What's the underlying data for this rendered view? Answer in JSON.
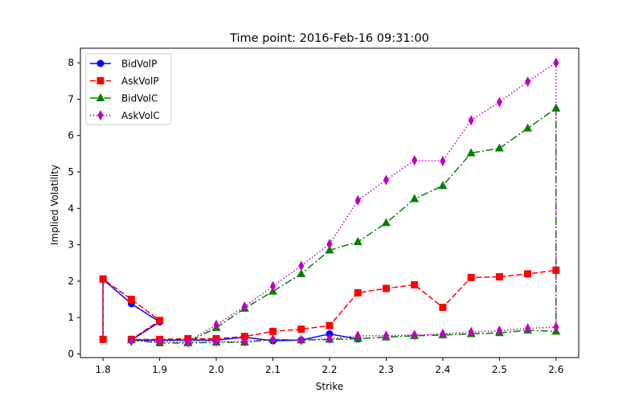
{
  "chart_data": {
    "type": "line",
    "title": "Time point: 2016-Feb-16 09:31:00",
    "xlabel": "Strike",
    "ylabel": "Implied Volatility",
    "xlim": [
      1.76,
      2.64
    ],
    "ylim": [
      -0.1,
      8.4
    ],
    "xticks": [
      1.8,
      1.9,
      2.0,
      2.1,
      2.2,
      2.3,
      2.4,
      2.5,
      2.6
    ],
    "yticks": [
      0,
      1,
      2,
      3,
      4,
      5,
      6,
      7,
      8
    ],
    "xtick_labels": [
      "1.8",
      "1.9",
      "2.0",
      "2.1",
      "2.2",
      "2.3",
      "2.4",
      "2.5",
      "2.6"
    ],
    "ytick_labels": [
      "0",
      "1",
      "2",
      "3",
      "4",
      "5",
      "6",
      "7",
      "8"
    ],
    "grid": false,
    "legend_position": "top-left",
    "series": [
      {
        "name": "BidVolP",
        "color": "#0000ff",
        "marker": "circle",
        "linestyle": "solid",
        "x": [
          1.8,
          1.8,
          1.85,
          1.9,
          1.85,
          1.9,
          1.95,
          2.0,
          2.05,
          2.1,
          2.15,
          2.2,
          2.25
        ],
        "y": [
          0.4,
          2.05,
          1.38,
          0.88,
          0.38,
          0.38,
          0.38,
          0.38,
          0.46,
          0.36,
          0.38,
          0.55,
          0.41
        ]
      },
      {
        "name": "AskVolP",
        "color": "#ff0000",
        "marker": "square",
        "linestyle": "dashed",
        "x": [
          1.8,
          1.8,
          1.85,
          1.9,
          1.85,
          1.9,
          1.95,
          2.0,
          2.05,
          2.1,
          2.15,
          2.2,
          2.25,
          2.3,
          2.35,
          2.4,
          2.45,
          2.5,
          2.55,
          2.6
        ],
        "y": [
          0.4,
          2.06,
          1.5,
          0.92,
          0.4,
          0.4,
          0.42,
          0.42,
          0.48,
          0.62,
          0.68,
          0.78,
          1.68,
          1.8,
          1.9,
          1.28,
          2.1,
          2.12,
          2.2,
          2.3
        ]
      },
      {
        "name": "BidVolC",
        "color": "#008000",
        "marker": "triangle",
        "linestyle": "dashdot",
        "x": [
          1.85,
          1.9,
          1.95,
          2.0,
          2.05,
          2.1,
          2.15,
          2.2,
          2.25,
          2.3,
          2.35,
          2.4,
          2.45,
          2.5,
          2.55,
          2.6,
          2.6,
          2.55,
          2.5,
          2.45,
          2.4,
          2.35,
          2.3,
          2.25,
          2.2,
          2.15,
          2.1,
          2.05,
          2.0,
          1.95
        ],
        "y": [
          0.38,
          0.3,
          0.3,
          0.32,
          0.32,
          0.4,
          0.38,
          0.4,
          0.42,
          0.46,
          0.5,
          0.52,
          0.55,
          0.58,
          0.65,
          0.62,
          6.75,
          6.2,
          5.65,
          5.52,
          4.62,
          4.26,
          3.6,
          3.08,
          2.85,
          2.2,
          1.72,
          1.25,
          0.72,
          0.32
        ]
      },
      {
        "name": "AskVolC",
        "color": "#bf00bf",
        "marker": "thin_diamond",
        "linestyle": "dotted",
        "x": [
          1.85,
          1.9,
          1.95,
          2.0,
          2.05,
          2.1,
          2.15,
          2.2,
          2.25,
          2.3,
          2.35,
          2.4,
          2.45,
          2.5,
          2.55,
          2.6,
          2.6,
          2.55,
          2.5,
          2.45,
          2.4,
          2.35,
          2.3,
          2.25,
          2.2,
          2.15,
          2.1,
          2.05,
          2.0,
          1.95
        ],
        "y": [
          0.36,
          0.34,
          0.32,
          0.34,
          0.34,
          0.4,
          0.38,
          0.42,
          0.5,
          0.5,
          0.52,
          0.55,
          0.6,
          0.64,
          0.7,
          0.74,
          8.0,
          7.48,
          6.92,
          6.42,
          5.3,
          5.32,
          4.78,
          4.22,
          3.02,
          2.42,
          1.86,
          1.3,
          0.8,
          0.34
        ]
      }
    ]
  }
}
